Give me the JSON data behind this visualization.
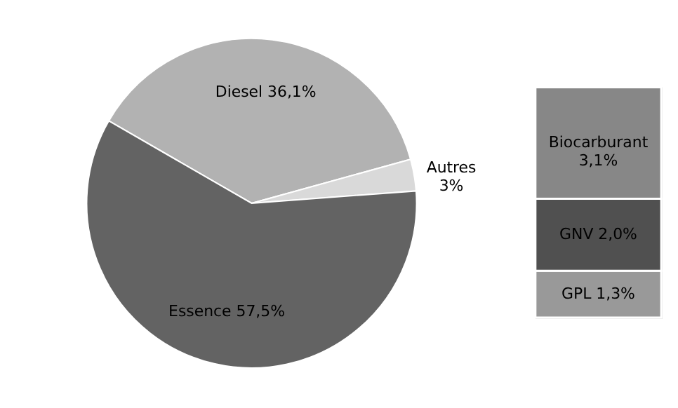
{
  "chart_data": [
    {
      "type": "pie",
      "categories": [
        "Diesel",
        "Autres",
        "Essence"
      ],
      "values": [
        36.1,
        3,
        57.5
      ],
      "colors": [
        "#b2b2b2",
        "#d9d9d9",
        "#636363"
      ],
      "value_labels": [
        "36,1%",
        "3%",
        "57,5%"
      ],
      "legend": false
    },
    {
      "type": "bar",
      "stacked": true,
      "categories": [
        null
      ],
      "series": [
        {
          "name": "GPL",
          "color": "#999999",
          "values": [
            1.3
          ],
          "value_labels": [
            "1,3%"
          ]
        },
        {
          "name": "GNV",
          "color": "#505050",
          "values": [
            2.0
          ],
          "value_labels": [
            "2,0%"
          ]
        },
        {
          "name": "Biocarburant",
          "color": "#878787",
          "values": [
            3.1
          ],
          "value_labels": [
            "3,1%"
          ]
        }
      ],
      "legend": false,
      "tick_labels": false
    }
  ]
}
